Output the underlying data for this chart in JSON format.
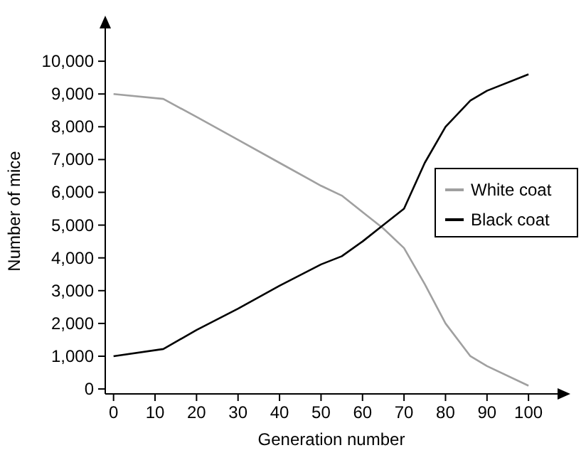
{
  "chart_data": {
    "type": "line",
    "xlabel": "Generation number",
    "ylabel": "Number of mice",
    "xlim": [
      -2,
      107
    ],
    "ylim": [
      -150,
      11000
    ],
    "xticks": [
      0,
      10,
      20,
      30,
      40,
      50,
      60,
      70,
      80,
      90,
      100
    ],
    "yticks": [
      0,
      {
        "value": 1000,
        "label": "1,000"
      },
      {
        "value": 2000,
        "label": "2,000"
      },
      {
        "value": 3000,
        "label": "3,000"
      },
      {
        "value": 4000,
        "label": "4,000"
      },
      {
        "value": 5000,
        "label": "5,000"
      },
      {
        "value": 6000,
        "label": "6,000"
      },
      {
        "value": 7000,
        "label": "7,000"
      },
      {
        "value": 8000,
        "label": "8,000"
      },
      {
        "value": 9000,
        "label": "9,000"
      },
      {
        "value": 10000,
        "label": "10,000"
      }
    ],
    "x": [
      0,
      12,
      20,
      30,
      40,
      50,
      55,
      60,
      65,
      70,
      75,
      80,
      86,
      90,
      100
    ],
    "series": [
      {
        "name": "White coat",
        "color": "#a0a0a0",
        "values": [
          9000,
          8850,
          8300,
          7600,
          6900,
          6200,
          5900,
          5400,
          4900,
          4300,
          3200,
          2000,
          1000,
          700,
          100
        ]
      },
      {
        "name": "Black coat",
        "color": "#000000",
        "values": [
          1000,
          1220,
          1800,
          2450,
          3150,
          3800,
          4050,
          4500,
          5000,
          5500,
          6900,
          8000,
          8800,
          9100,
          9600
        ]
      }
    ],
    "grid": false,
    "legend": "right",
    "marker": "none",
    "line_style": "solid"
  }
}
